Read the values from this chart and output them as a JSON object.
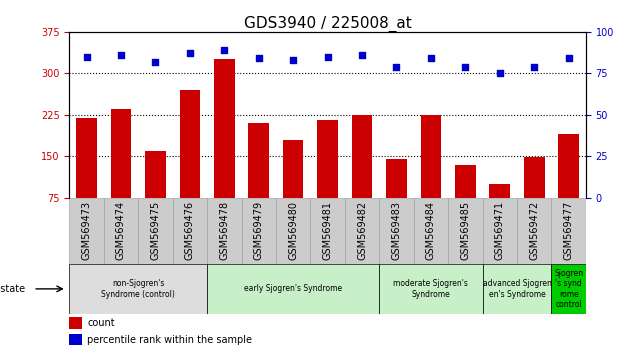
{
  "title": "GDS3940 / 225008_at",
  "samples": [
    "GSM569473",
    "GSM569474",
    "GSM569475",
    "GSM569476",
    "GSM569478",
    "GSM569479",
    "GSM569480",
    "GSM569481",
    "GSM569482",
    "GSM569483",
    "GSM569484",
    "GSM569485",
    "GSM569471",
    "GSM569472",
    "GSM569477"
  ],
  "counts": [
    220,
    235,
    160,
    270,
    325,
    210,
    180,
    215,
    225,
    145,
    225,
    135,
    100,
    148,
    190
  ],
  "percentiles": [
    85,
    86,
    82,
    87,
    89,
    84,
    83,
    85,
    86,
    79,
    84,
    79,
    75,
    79,
    84
  ],
  "ylim_left": [
    75,
    375
  ],
  "ylim_right": [
    0,
    100
  ],
  "yticks_left": [
    75,
    150,
    225,
    300,
    375
  ],
  "yticks_right": [
    0,
    25,
    50,
    75,
    100
  ],
  "bar_color": "#cc0000",
  "dot_color": "#0000cc",
  "bg_color": "#ffffff",
  "disease_groups": [
    {
      "label": "non-Sjogren's\nSyndrome (control)",
      "start": 0,
      "end": 4,
      "color": "#dddddd"
    },
    {
      "label": "early Sjogren's Syndrome",
      "start": 4,
      "end": 9,
      "color": "#c8f0c8"
    },
    {
      "label": "moderate Sjogren's\nSyndrome",
      "start": 9,
      "end": 12,
      "color": "#c8f0c8"
    },
    {
      "label": "advanced Sjogren\nen's Syndrome",
      "start": 12,
      "end": 14,
      "color": "#c8f0c8"
    },
    {
      "label": "Sjogren\n's synd\nrome\ncontrol",
      "start": 14,
      "end": 15,
      "color": "#00cc00"
    }
  ],
  "legend_count_label": "count",
  "legend_pct_label": "percentile rank within the sample",
  "title_fontsize": 11,
  "tick_fontsize": 7,
  "bar_width": 0.6,
  "n_samples": 15
}
